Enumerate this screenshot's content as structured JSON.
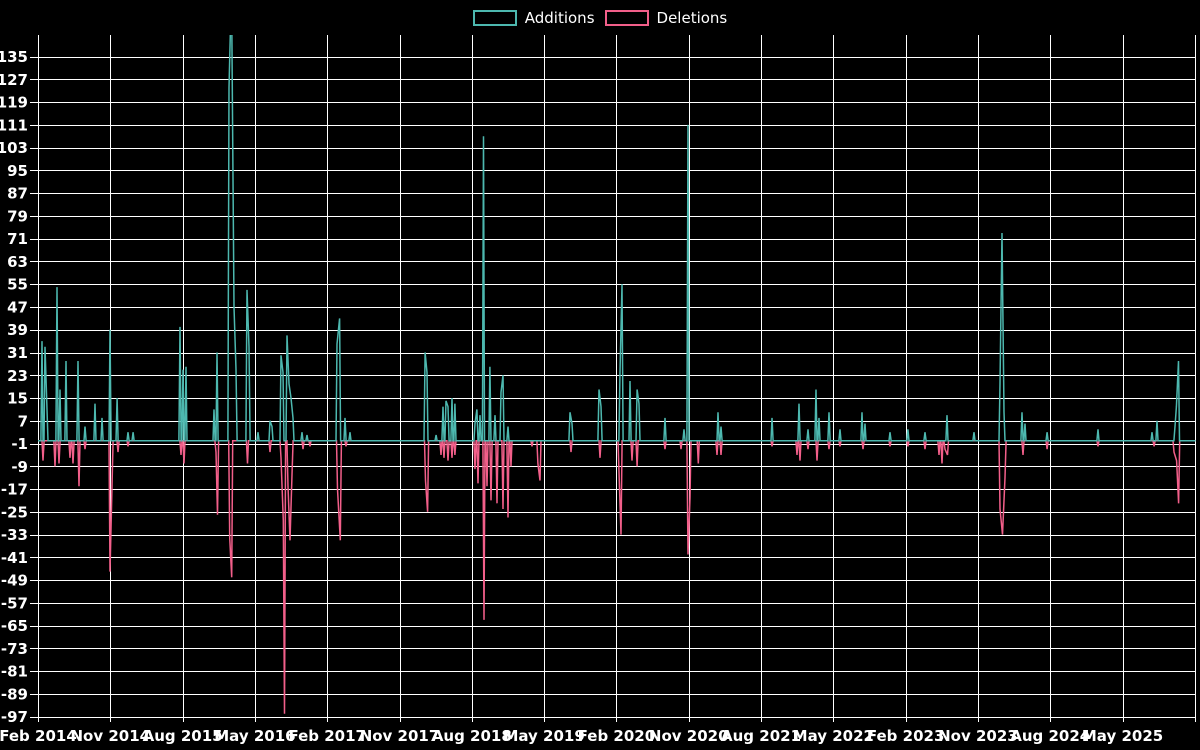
{
  "legend": {
    "items": [
      {
        "label": "Additions",
        "color": "#4db8af"
      },
      {
        "label": "Deletions",
        "color": "#f25f8a"
      }
    ]
  },
  "colors": {
    "background": "#000000",
    "grid": "#ffffff",
    "text": "#ffffff",
    "additions": "#4db8af",
    "deletions": "#f25f8a"
  },
  "chart_data": {
    "type": "line",
    "title": "",
    "xlabel": "",
    "ylabel": "",
    "grid": true,
    "legend_position": "top-center",
    "baseline": 0,
    "x_axis": {
      "min": 2014.083,
      "max": 2026.095,
      "tick_step_months": 9,
      "ticks": [
        {
          "t": 2014.083,
          "label": "Feb 2014"
        },
        {
          "t": 2014.833,
          "label": "Nov 2014"
        },
        {
          "t": 2015.583,
          "label": "Aug 2015"
        },
        {
          "t": 2016.333,
          "label": "May 2016"
        },
        {
          "t": 2017.083,
          "label": "Feb 2017"
        },
        {
          "t": 2017.833,
          "label": "Nov 2017"
        },
        {
          "t": 2018.583,
          "label": "Aug 2018"
        },
        {
          "t": 2019.333,
          "label": "May 2019"
        },
        {
          "t": 2020.083,
          "label": "Feb 2020"
        },
        {
          "t": 2020.833,
          "label": "Nov 2020"
        },
        {
          "t": 2021.583,
          "label": "Aug 2021"
        },
        {
          "t": 2022.333,
          "label": "May 2022"
        },
        {
          "t": 2023.083,
          "label": "Feb 2023"
        },
        {
          "t": 2023.833,
          "label": "Nov 2023"
        },
        {
          "t": 2024.583,
          "label": "Aug 2024"
        },
        {
          "t": 2025.333,
          "label": "May 2025"
        },
        {
          "t": 2026.083,
          "label": ""
        }
      ]
    },
    "y_axis": {
      "min": -99,
      "max": 142.6,
      "ticks": [
        135,
        127,
        119,
        111,
        103,
        95,
        87,
        79,
        71,
        63,
        55,
        47,
        39,
        31,
        23,
        15,
        7,
        -1,
        -9,
        -17,
        -25,
        -33,
        -41,
        -49,
        -57,
        -65,
        -73,
        -81,
        -89,
        -97
      ]
    },
    "series": [
      {
        "name": "Additions",
        "color": "#4db8af",
        "points": [
          [
            2014.124,
            35
          ],
          [
            2014.156,
            33
          ],
          [
            2014.176,
            11
          ],
          [
            2014.28,
            54
          ],
          [
            2014.311,
            18
          ],
          [
            2014.373,
            28
          ],
          [
            2014.498,
            28
          ],
          [
            2014.571,
            5
          ],
          [
            2014.674,
            13
          ],
          [
            2014.747,
            8
          ],
          [
            2014.83,
            39
          ],
          [
            2014.903,
            15
          ],
          [
            2015.017,
            3
          ],
          [
            2015.069,
            3
          ],
          [
            2015.556,
            40
          ],
          [
            2015.587,
            25
          ],
          [
            2015.618,
            26
          ],
          [
            2015.909,
            11
          ],
          [
            2015.94,
            31
          ],
          [
            2016.064,
            124
          ],
          [
            2016.09,
            160
          ],
          [
            2016.116,
            47
          ],
          [
            2016.137,
            25
          ],
          [
            2016.251,
            53
          ],
          [
            2016.272,
            33
          ],
          [
            2016.365,
            3
          ],
          [
            2016.49,
            7
          ],
          [
            2016.51,
            5
          ],
          [
            2016.604,
            30
          ],
          [
            2016.624,
            24
          ],
          [
            2016.666,
            37
          ],
          [
            2016.687,
            20
          ],
          [
            2016.707,
            15
          ],
          [
            2016.728,
            8
          ],
          [
            2016.821,
            3
          ],
          [
            2016.873,
            2
          ],
          [
            2017.185,
            34
          ],
          [
            2017.211,
            43
          ],
          [
            2017.268,
            8
          ],
          [
            2017.319,
            3
          ],
          [
            2018.098,
            31
          ],
          [
            2018.118,
            24
          ],
          [
            2018.212,
            2
          ],
          [
            2018.284,
            12
          ],
          [
            2018.315,
            14
          ],
          [
            2018.336,
            12
          ],
          [
            2018.377,
            15
          ],
          [
            2018.408,
            13
          ],
          [
            2018.616,
            6
          ],
          [
            2018.636,
            11
          ],
          [
            2018.668,
            9
          ],
          [
            2018.704,
            107
          ],
          [
            2018.771,
            26
          ],
          [
            2018.823,
            9
          ],
          [
            2018.886,
            17
          ],
          [
            2018.906,
            23
          ],
          [
            2018.958,
            5
          ],
          [
            2019.601,
            10
          ],
          [
            2019.622,
            6
          ],
          [
            2019.902,
            18
          ],
          [
            2019.923,
            12
          ],
          [
            2020.12,
            24
          ],
          [
            2020.141,
            55
          ],
          [
            2020.224,
            21
          ],
          [
            2020.297,
            18
          ],
          [
            2020.317,
            13
          ],
          [
            2020.587,
            8
          ],
          [
            2020.784,
            4
          ],
          [
            2020.825,
            111
          ],
          [
            2021.137,
            10
          ],
          [
            2021.168,
            5
          ],
          [
            2021.697,
            8
          ],
          [
            2021.977,
            13
          ],
          [
            2022.07,
            4
          ],
          [
            2022.153,
            18
          ],
          [
            2022.184,
            8
          ],
          [
            2022.288,
            10
          ],
          [
            2022.402,
            4
          ],
          [
            2022.63,
            10
          ],
          [
            2022.661,
            6
          ],
          [
            2022.921,
            3
          ],
          [
            2023.107,
            4
          ],
          [
            2023.284,
            3
          ],
          [
            2023.512,
            9
          ],
          [
            2023.792,
            3
          ],
          [
            2024.062,
            20
          ],
          [
            2024.083,
            73
          ],
          [
            2024.103,
            10
          ],
          [
            2024.29,
            10
          ],
          [
            2024.321,
            6
          ],
          [
            2024.55,
            3
          ],
          [
            2025.078,
            4
          ],
          [
            2025.639,
            3
          ],
          [
            2025.69,
            7
          ],
          [
            2025.877,
            5
          ],
          [
            2025.892,
            12
          ],
          [
            2025.913,
            28
          ]
        ]
      },
      {
        "name": "Deletions",
        "color": "#f25f8a",
        "points": [
          [
            2014.135,
            -7
          ],
          [
            2014.259,
            -9
          ],
          [
            2014.301,
            -8
          ],
          [
            2014.415,
            -6
          ],
          [
            2014.446,
            -8
          ],
          [
            2014.508,
            -16
          ],
          [
            2014.571,
            -3
          ],
          [
            2014.83,
            -46
          ],
          [
            2014.851,
            -16
          ],
          [
            2014.913,
            -4
          ],
          [
            2015.017,
            -2
          ],
          [
            2015.566,
            -5
          ],
          [
            2015.597,
            -8
          ],
          [
            2015.929,
            -4
          ],
          [
            2015.945,
            -26
          ],
          [
            2016.072,
            -34
          ],
          [
            2016.092,
            -48
          ],
          [
            2016.256,
            -8
          ],
          [
            2016.49,
            -4
          ],
          [
            2016.604,
            -6
          ],
          [
            2016.628,
            -28
          ],
          [
            2016.64,
            -96
          ],
          [
            2016.676,
            -16
          ],
          [
            2016.697,
            -35
          ],
          [
            2016.718,
            -12
          ],
          [
            2016.832,
            -3
          ],
          [
            2016.904,
            -2
          ],
          [
            2017.19,
            -17
          ],
          [
            2017.219,
            -35
          ],
          [
            2017.278,
            -2
          ],
          [
            2018.103,
            -14
          ],
          [
            2018.124,
            -25
          ],
          [
            2018.263,
            -5
          ],
          [
            2018.294,
            -6
          ],
          [
            2018.336,
            -7
          ],
          [
            2018.377,
            -6
          ],
          [
            2018.408,
            -5
          ],
          [
            2018.616,
            -10
          ],
          [
            2018.647,
            -15
          ],
          [
            2018.709,
            -63
          ],
          [
            2018.74,
            -16
          ],
          [
            2018.782,
            -21
          ],
          [
            2018.844,
            -22
          ],
          [
            2018.906,
            -24
          ],
          [
            2018.958,
            -27
          ],
          [
            2018.989,
            -9
          ],
          [
            2019.207,
            -2
          ],
          [
            2019.269,
            -8
          ],
          [
            2019.29,
            -14
          ],
          [
            2019.612,
            -4
          ],
          [
            2019.913,
            -6
          ],
          [
            2020.11,
            -11
          ],
          [
            2020.131,
            -33
          ],
          [
            2020.245,
            -7
          ],
          [
            2020.297,
            -9
          ],
          [
            2020.587,
            -3
          ],
          [
            2020.753,
            -3
          ],
          [
            2020.825,
            -40
          ],
          [
            2020.846,
            -20
          ],
          [
            2020.932,
            -8
          ],
          [
            2021.126,
            -5
          ],
          [
            2021.168,
            -5
          ],
          [
            2021.697,
            -2
          ],
          [
            2021.956,
            -5
          ],
          [
            2021.987,
            -7
          ],
          [
            2022.07,
            -3
          ],
          [
            2022.164,
            -7
          ],
          [
            2022.288,
            -3
          ],
          [
            2022.402,
            -2
          ],
          [
            2022.641,
            -3
          ],
          [
            2022.921,
            -2
          ],
          [
            2023.107,
            -2
          ],
          [
            2023.284,
            -3
          ],
          [
            2023.429,
            -5
          ],
          [
            2023.46,
            -8
          ],
          [
            2023.491,
            -3
          ],
          [
            2023.517,
            -5
          ],
          [
            2024.062,
            -24
          ],
          [
            2024.088,
            -33
          ],
          [
            2024.114,
            -13
          ],
          [
            2024.3,
            -5
          ],
          [
            2024.55,
            -3
          ],
          [
            2025.078,
            -2
          ],
          [
            2025.66,
            -2
          ],
          [
            2025.867,
            -4
          ],
          [
            2025.894,
            -7
          ],
          [
            2025.915,
            -22
          ]
        ]
      }
    ]
  }
}
